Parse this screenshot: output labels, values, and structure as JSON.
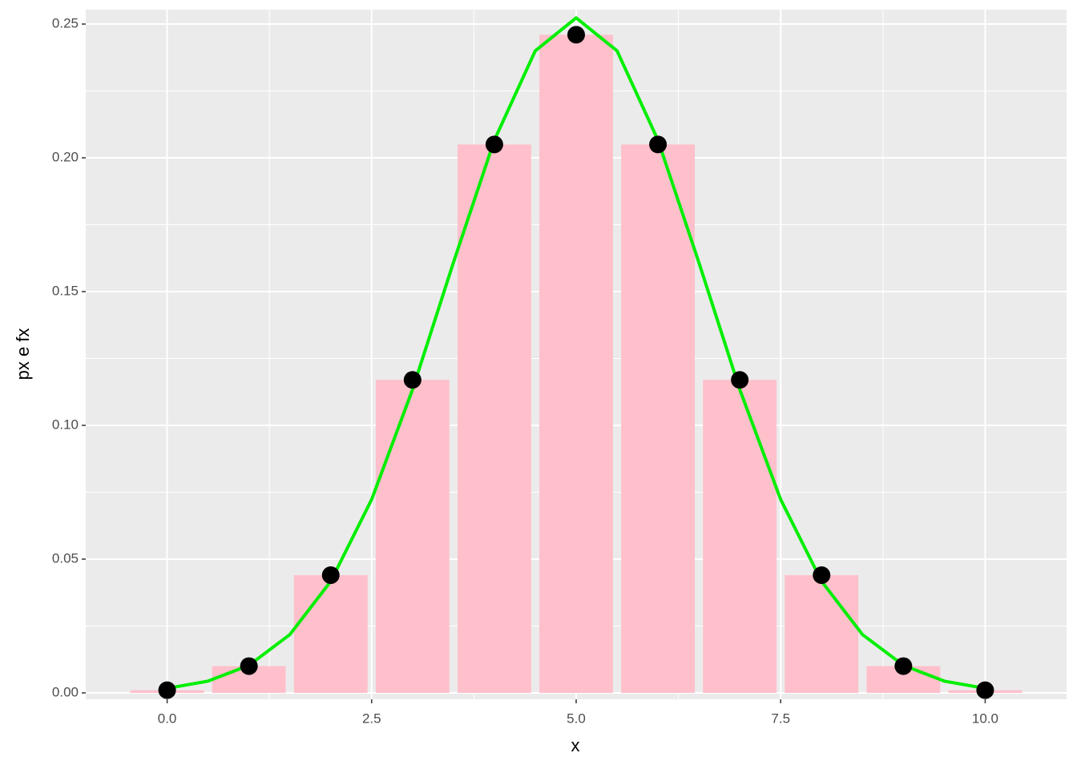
{
  "chart_data": {
    "type": "bar",
    "x_label": "x",
    "y_label": "px e fx",
    "x": [
      0,
      1,
      2,
      3,
      4,
      5,
      6,
      7,
      8,
      9,
      10
    ],
    "values": [
      0.001,
      0.01,
      0.044,
      0.117,
      0.205,
      0.246,
      0.205,
      0.117,
      0.044,
      0.01,
      0.001
    ],
    "bar_width": 0.9,
    "color": "#ffc0cb",
    "point_color": "#000000",
    "curve": {
      "color": "#00ee00",
      "x": [
        0,
        0.5,
        1,
        1.5,
        2,
        2.5,
        3,
        3.5,
        4,
        4.5,
        5,
        5.5,
        6,
        6.5,
        7,
        7.5,
        8,
        8.5,
        9,
        9.5,
        10
      ],
      "values": [
        0.0017,
        0.0044,
        0.0103,
        0.0218,
        0.0417,
        0.0723,
        0.1134,
        0.1609,
        0.2066,
        0.24,
        0.2523,
        0.24,
        0.2066,
        0.1609,
        0.1134,
        0.0723,
        0.0417,
        0.0218,
        0.0103,
        0.0044,
        0.0017
      ]
    },
    "xlim": [
      -0.995,
      10.995
    ],
    "ylim": [
      -0.0024,
      0.2554
    ],
    "xticks": [
      {
        "value": 0,
        "label": "0.0"
      },
      2.5,
      {
        "value": 5,
        "label": "5.0"
      },
      7.5,
      {
        "value": 10,
        "label": "10.0"
      }
    ],
    "yticks": [
      {
        "value": 0,
        "label": "0.00"
      },
      0.05,
      {
        "value": 0.1,
        "label": "0.10"
      },
      0.15,
      {
        "value": 0.2,
        "label": "0.20"
      },
      0.25
    ],
    "grid": true,
    "minor_grid": true
  }
}
